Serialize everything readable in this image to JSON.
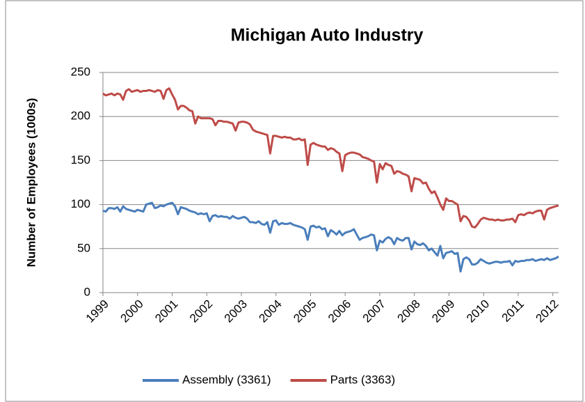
{
  "chart_data": {
    "type": "line",
    "title": "Michigan Auto Industry",
    "y_label": "Number of Employees (1000s)",
    "categories": [
      "1999",
      null,
      null,
      null,
      null,
      null,
      null,
      null,
      null,
      null,
      null,
      null,
      "2000",
      null,
      null,
      null,
      null,
      null,
      null,
      null,
      null,
      null,
      null,
      null,
      "2001",
      null,
      null,
      null,
      null,
      null,
      null,
      null,
      null,
      null,
      null,
      null,
      "2002",
      null,
      null,
      null,
      null,
      null,
      null,
      null,
      null,
      null,
      null,
      null,
      "2003",
      null,
      null,
      null,
      null,
      null,
      null,
      null,
      null,
      null,
      null,
      null,
      "2004",
      null,
      null,
      null,
      null,
      null,
      null,
      null,
      null,
      null,
      null,
      null,
      "2005",
      null,
      null,
      null,
      null,
      null,
      null,
      null,
      null,
      null,
      null,
      null,
      "2006",
      null,
      null,
      null,
      null,
      null,
      null,
      null,
      null,
      null,
      null,
      null,
      "2007",
      null,
      null,
      null,
      null,
      null,
      null,
      null,
      null,
      null,
      null,
      null,
      "2008",
      null,
      null,
      null,
      null,
      null,
      null,
      null,
      null,
      null,
      null,
      null,
      "2009",
      null,
      null,
      null,
      null,
      null,
      null,
      null,
      null,
      null,
      null,
      null,
      "2010",
      null,
      null,
      null,
      null,
      null,
      null,
      null,
      null,
      null,
      null,
      null,
      "2011",
      null,
      null,
      null,
      null,
      null,
      null,
      null,
      null,
      null,
      null,
      null,
      "2012",
      null,
      null
    ],
    "series": [
      {
        "name": "Assembly (3361)",
        "color": "#4a7ebb",
        "values": [
          93,
          92,
          96,
          96,
          95,
          97,
          92,
          98,
          95,
          94,
          93,
          92,
          94,
          93,
          92,
          100,
          101,
          102,
          96,
          97,
          99,
          98,
          100,
          101,
          102,
          98,
          89,
          97,
          96,
          95,
          93,
          92,
          91,
          89,
          90,
          89,
          90,
          81,
          87,
          88,
          86,
          87,
          86,
          86,
          84,
          87,
          85,
          84,
          85,
          86,
          84,
          80,
          80,
          79,
          81,
          78,
          77,
          80,
          68,
          81,
          82,
          77,
          79,
          78,
          78,
          79,
          77,
          76,
          75,
          74,
          72,
          60,
          75,
          76,
          74,
          75,
          72,
          73,
          64,
          71,
          69,
          66,
          70,
          65,
          68,
          69,
          70,
          72,
          66,
          60,
          62,
          63,
          64,
          66,
          65,
          48,
          59,
          57,
          61,
          63,
          61,
          55,
          62,
          60,
          59,
          62,
          62,
          49,
          58,
          55,
          54,
          56,
          53,
          48,
          50,
          46,
          42,
          53,
          39,
          45,
          46,
          47,
          44,
          45,
          24,
          38,
          40,
          38,
          32,
          32,
          34,
          38,
          36,
          34,
          33,
          34,
          35,
          35,
          34,
          35,
          35,
          36,
          31,
          36,
          35,
          36,
          36,
          37,
          37,
          38,
          36,
          37,
          38,
          37,
          39,
          37,
          38,
          39,
          41
        ]
      },
      {
        "name": "Parts (3363)",
        "color": "#be4b48",
        "values": [
          226,
          224,
          225,
          226,
          224,
          226,
          225,
          219,
          229,
          231,
          228,
          229,
          230,
          228,
          229,
          229,
          230,
          229,
          228,
          230,
          229,
          220,
          230,
          232,
          225,
          219,
          208,
          212,
          212,
          210,
          207,
          206,
          192,
          200,
          198,
          198,
          198,
          198,
          197,
          190,
          195,
          195,
          194,
          194,
          193,
          192,
          184,
          193,
          194,
          194,
          193,
          191,
          185,
          183,
          182,
          181,
          180,
          179,
          158,
          178,
          178,
          177,
          176,
          177,
          176,
          176,
          174,
          174,
          175,
          173,
          174,
          145,
          168,
          170,
          168,
          167,
          166,
          166,
          162,
          164,
          163,
          160,
          158,
          138,
          156,
          158,
          159,
          159,
          158,
          157,
          154,
          153,
          152,
          150,
          149,
          125,
          146,
          140,
          147,
          145,
          144,
          135,
          138,
          137,
          135,
          134,
          132,
          115,
          130,
          129,
          128,
          124,
          125,
          118,
          113,
          115,
          108,
          100,
          94,
          107,
          104,
          104,
          102,
          100,
          81,
          87,
          86,
          82,
          75,
          74,
          78,
          83,
          85,
          84,
          83,
          83,
          82,
          83,
          82,
          82,
          83,
          83,
          84,
          80,
          88,
          89,
          88,
          90,
          91,
          90,
          92,
          93,
          93,
          83,
          94,
          96,
          97,
          98,
          99
        ]
      }
    ],
    "ylim": [
      0,
      250
    ],
    "yticks": [
      0,
      50,
      100,
      150,
      200,
      250
    ],
    "grid": true,
    "legend": "bottom"
  }
}
